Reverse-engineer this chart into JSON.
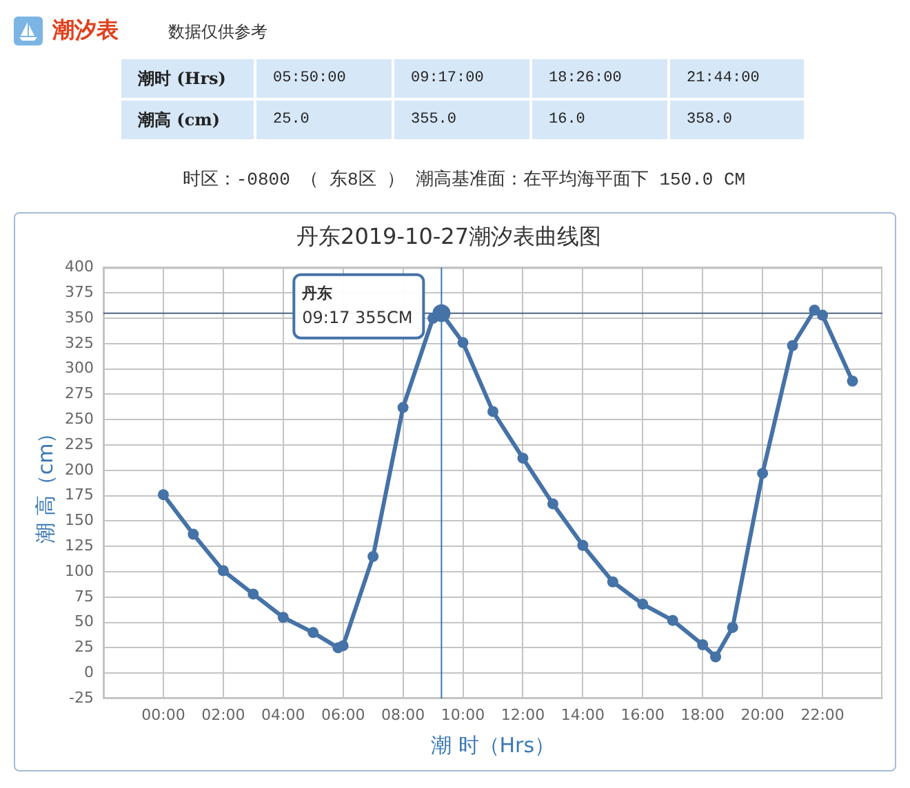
{
  "chart_data": [
    {
      "type": "other",
      "title": "潮汐表",
      "subtitle": "数据仅供参考",
      "xlabel": "潮时 (Hrs)",
      "ylabel": "潮高 (cm)",
      "categories": [
        "05:50:00",
        "09:17:00",
        "18:26:00",
        "21:44:00"
      ],
      "values": [
        25,
        355,
        16,
        358
      ],
      "value_labels": [
        "25.0",
        "355.0",
        "16.0",
        "358.0"
      ],
      "annotations": [
        "时区：-0800 （ 东8区 ） 潮高基准面：在平均海平面下 150.0 CM"
      ]
    },
    {
      "type": "line",
      "title": "丹东2019-10-27潮汐表曲线图",
      "xlabel": "潮 时（Hrs）",
      "ylabel": "潮 高（cm）",
      "x": [
        0,
        1,
        2,
        3,
        4,
        5,
        5.833,
        6,
        7,
        8,
        9,
        9.283,
        10,
        11,
        12,
        13,
        14,
        15,
        16,
        17,
        18,
        18.433,
        19,
        20,
        21,
        21.733,
        22,
        23
      ],
      "values": [
        176,
        137,
        101,
        78,
        55,
        40,
        25,
        27,
        115,
        262,
        350,
        355,
        326,
        258,
        212,
        167,
        126,
        90,
        68,
        52,
        28,
        16,
        45,
        197,
        323,
        358,
        353,
        288
      ],
      "color": "#4572a7",
      "marker": "circle",
      "xlim": [
        -2,
        24
      ],
      "xticks": [
        {
          "value": 0,
          "label": "00:00"
        },
        {
          "value": 2,
          "label": "02:00"
        },
        {
          "value": 4,
          "label": "04:00"
        },
        {
          "value": 6,
          "label": "06:00"
        },
        {
          "value": 8,
          "label": "08:00"
        },
        {
          "value": 10,
          "label": "10:00"
        },
        {
          "value": 12,
          "label": "12:00"
        },
        {
          "value": 14,
          "label": "14:00"
        },
        {
          "value": 16,
          "label": "16:00"
        },
        {
          "value": 18,
          "label": "18:00"
        },
        {
          "value": 20,
          "label": "20:00"
        },
        {
          "value": 22,
          "label": "22:00"
        }
      ],
      "ylim": [
        -25,
        400
      ],
      "yticks": [
        -25,
        0,
        25,
        50,
        75,
        100,
        125,
        150,
        175,
        200,
        225,
        250,
        275,
        300,
        325,
        350,
        375,
        400
      ],
      "grid": true,
      "ref_lines": [
        {
          "axis": "x",
          "value": 9.283,
          "color": "#3a78b4"
        },
        {
          "axis": "y",
          "value": 355,
          "color": "#4f6680"
        }
      ],
      "annotations": [
        "丹东",
        "09:17 355CM"
      ]
    }
  ]
}
